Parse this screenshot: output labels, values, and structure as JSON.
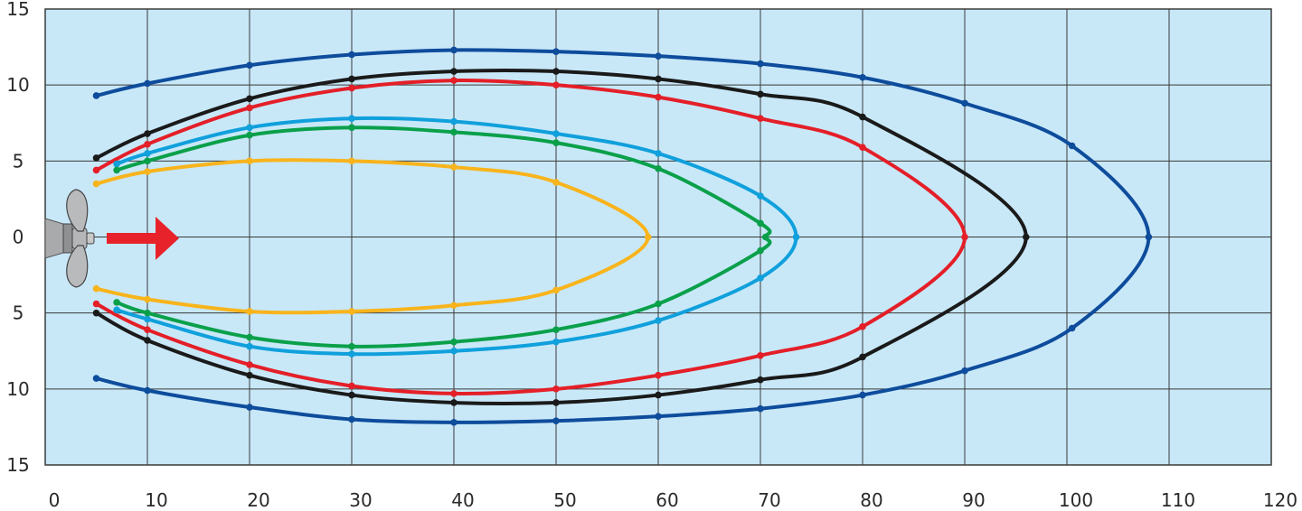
{
  "chart_data": {
    "type": "line",
    "title": "",
    "xlabel": "",
    "ylabel": "",
    "xlim": [
      0,
      120
    ],
    "ylim": [
      -15,
      15
    ],
    "xticks": [
      0,
      10,
      20,
      30,
      40,
      50,
      60,
      70,
      80,
      90,
      100,
      110,
      120
    ],
    "yticks": [
      15,
      10,
      5,
      0,
      -5,
      -10,
      -15
    ],
    "ytick_labels": [
      "15",
      "10",
      "5",
      "0",
      "5",
      "10",
      "15"
    ],
    "grid": true,
    "background": "#c8e8f8",
    "annotations": [
      "propeller-icon",
      "flow-direction-arrow"
    ],
    "arrow_color": "#e8222a",
    "series": [
      {
        "color": "#0e4c9c",
        "x": [
          5,
          10,
          20,
          30,
          40,
          50,
          60,
          70,
          80,
          90,
          100.5,
          108,
          100.5,
          90,
          80,
          70,
          60,
          50,
          40,
          30,
          20,
          10,
          5
        ],
        "y": [
          9.3,
          10.1,
          11.3,
          12,
          12.3,
          12.2,
          11.9,
          11.4,
          10.5,
          8.8,
          6,
          0,
          -6,
          -8.8,
          -10.4,
          -11.3,
          -11.8,
          -12.1,
          -12.2,
          -12,
          -11.2,
          -10.1,
          -9.3
        ]
      },
      {
        "color": "#1a1a1a",
        "x": [
          5,
          10,
          20,
          30,
          40,
          50,
          60,
          70,
          80,
          96,
          80,
          70,
          60,
          50,
          40,
          30,
          20,
          10,
          5
        ],
        "y": [
          5.2,
          6.8,
          9.1,
          10.4,
          10.9,
          10.9,
          10.4,
          9.4,
          7.9,
          0,
          -7.9,
          -9.4,
          -10.4,
          -10.9,
          -10.9,
          -10.4,
          -9.1,
          -6.8,
          -5.0
        ]
      },
      {
        "color": "#e41f28",
        "x": [
          5,
          10,
          20,
          30,
          40,
          50,
          60,
          70,
          80,
          90,
          80,
          70,
          60,
          50,
          40,
          30,
          20,
          10,
          5
        ],
        "y": [
          4.4,
          6.1,
          8.5,
          9.8,
          10.3,
          10.0,
          9.2,
          7.8,
          5.9,
          0,
          -5.9,
          -7.8,
          -9.1,
          -10.0,
          -10.3,
          -9.8,
          -8.4,
          -6.1,
          -4.4
        ]
      },
      {
        "color": "#10a0dc",
        "x": [
          7,
          10,
          20,
          30,
          40,
          50,
          60,
          70,
          73.5,
          70,
          60,
          50,
          40,
          30,
          20,
          10,
          7
        ],
        "y": [
          4.8,
          5.5,
          7.2,
          7.8,
          7.6,
          6.8,
          5.5,
          2.7,
          0,
          -2.7,
          -5.5,
          -6.9,
          -7.5,
          -7.7,
          -7.2,
          -5.4,
          -4.8
        ]
      },
      {
        "color": "#0aa04a",
        "x": [
          7,
          10,
          20,
          30,
          40,
          50,
          60,
          70,
          70.5,
          70,
          60,
          50,
          40,
          30,
          20,
          10,
          7
        ],
        "y": [
          4.4,
          5.0,
          6.7,
          7.2,
          6.9,
          6.2,
          4.5,
          0.9,
          0,
          -0.9,
          -4.4,
          -6.1,
          -6.9,
          -7.2,
          -6.6,
          -5.0,
          -4.3
        ]
      },
      {
        "color": "#f8b41c",
        "x": [
          5,
          10,
          20,
          30,
          40,
          50,
          59,
          50,
          40,
          30,
          20,
          10,
          5
        ],
        "y": [
          3.5,
          4.3,
          5.0,
          5.0,
          4.6,
          3.6,
          0,
          -3.5,
          -4.5,
          -4.9,
          -4.9,
          -4.1,
          -3.4
        ]
      }
    ]
  }
}
